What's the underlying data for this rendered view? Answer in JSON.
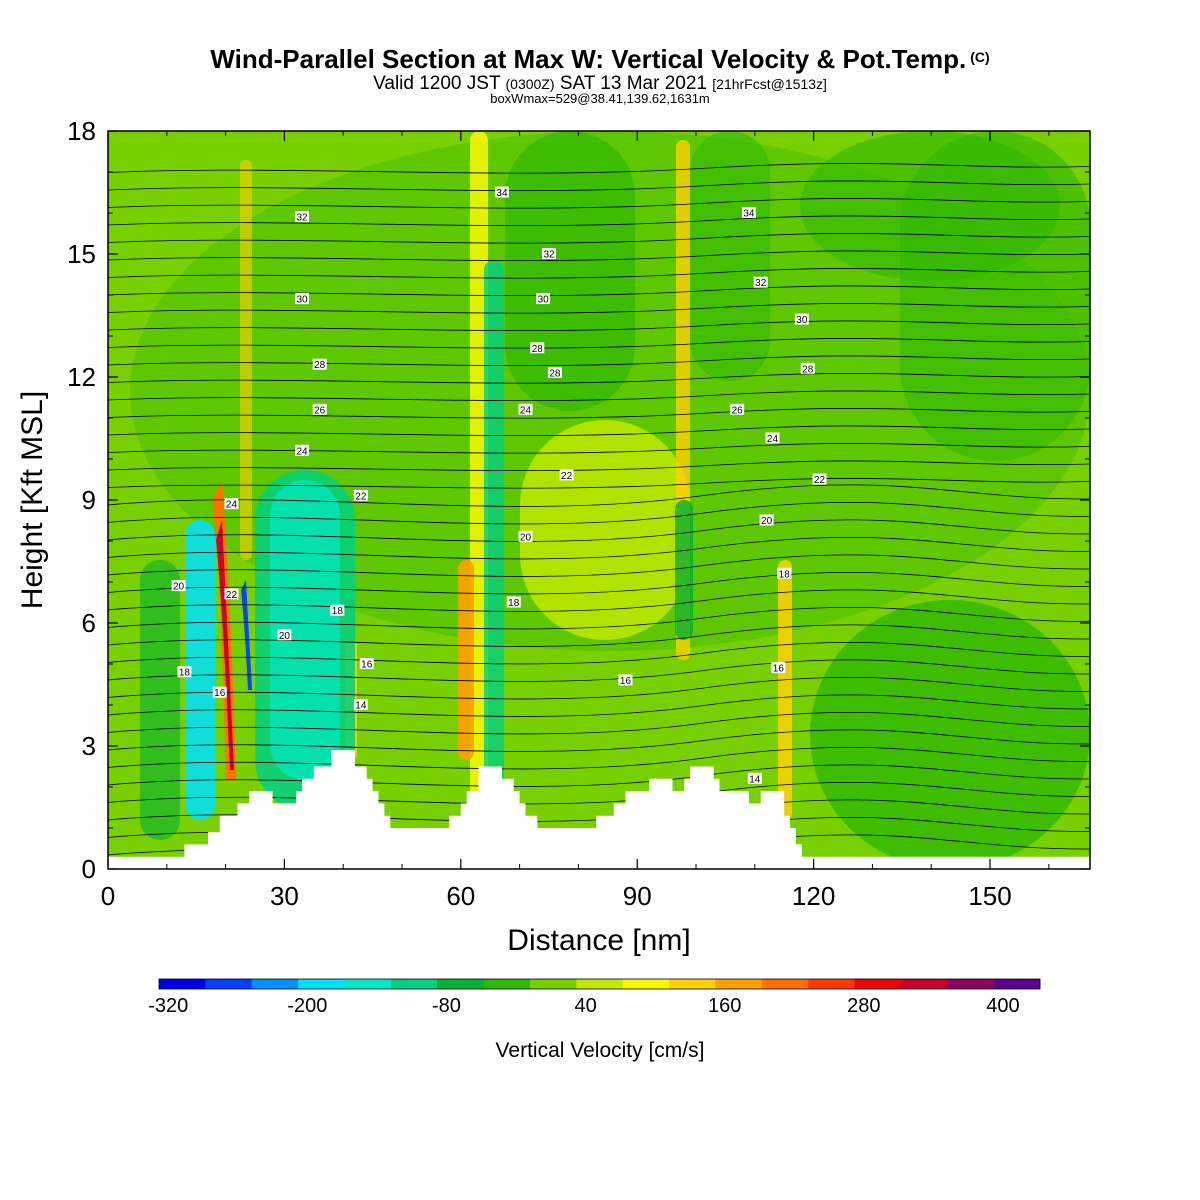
{
  "header": {
    "title": "Wind-Parallel Section at Max W: Vertical Velocity & Pot.Temp.",
    "copyright": "(C)",
    "valid_prefix": "Valid 1200 JST",
    "valid_utc": "(0300Z)",
    "valid_date": "SAT 13 Mar 2021",
    "forecast": "[21hrFcst@1513z]",
    "box_info": "boxWmax=529@38.41,139.62,1631m"
  },
  "chart_data": {
    "type": "heatmap",
    "xlabel": "Distance [nm]",
    "ylabel": "Height [Kft MSL]",
    "xlim": [
      0,
      167
    ],
    "ylim": [
      0,
      18
    ],
    "x_ticks": [
      0,
      30,
      60,
      90,
      120,
      150
    ],
    "y_ticks": [
      0,
      3,
      6,
      9,
      12,
      15,
      18
    ],
    "colorbar": {
      "label": "Vertical Velocity [cm/s]",
      "tick_labels": [
        "-320",
        "-200",
        "-80",
        "40",
        "160",
        "280",
        "400"
      ],
      "colors": [
        "#0000f0",
        "#0040ff",
        "#0090ff",
        "#00e0ff",
        "#00e8c8",
        "#00d080",
        "#00b030",
        "#30b800",
        "#78d000",
        "#c0e800",
        "#f8f800",
        "#ffd000",
        "#ffa000",
        "#ff7000",
        "#ff3800",
        "#f00000",
        "#c80030",
        "#900060",
        "#600090"
      ]
    },
    "terrain_kft": [
      {
        "x": 0,
        "z": 0.3
      },
      {
        "x": 13,
        "z": 0.3
      },
      {
        "x": 13,
        "z": 0.6
      },
      {
        "x": 17,
        "z": 0.6
      },
      {
        "x": 17,
        "z": 0.9
      },
      {
        "x": 19,
        "z": 0.9
      },
      {
        "x": 19,
        "z": 1.3
      },
      {
        "x": 22,
        "z": 1.3
      },
      {
        "x": 22,
        "z": 1.6
      },
      {
        "x": 24,
        "z": 1.6
      },
      {
        "x": 24,
        "z": 1.9
      },
      {
        "x": 28,
        "z": 1.9
      },
      {
        "x": 28,
        "z": 1.6
      },
      {
        "x": 32,
        "z": 1.6
      },
      {
        "x": 32,
        "z": 1.9
      },
      {
        "x": 33,
        "z": 1.9
      },
      {
        "x": 33,
        "z": 2.2
      },
      {
        "x": 35,
        "z": 2.2
      },
      {
        "x": 35,
        "z": 2.5
      },
      {
        "x": 38,
        "z": 2.5
      },
      {
        "x": 38,
        "z": 2.9
      },
      {
        "x": 42,
        "z": 2.9
      },
      {
        "x": 42,
        "z": 2.5
      },
      {
        "x": 44,
        "z": 2.5
      },
      {
        "x": 44,
        "z": 2.2
      },
      {
        "x": 45,
        "z": 2.2
      },
      {
        "x": 45,
        "z": 1.9
      },
      {
        "x": 46,
        "z": 1.9
      },
      {
        "x": 46,
        "z": 1.6
      },
      {
        "x": 47,
        "z": 1.6
      },
      {
        "x": 47,
        "z": 1.3
      },
      {
        "x": 48,
        "z": 1.3
      },
      {
        "x": 48,
        "z": 1.0
      },
      {
        "x": 58,
        "z": 1.0
      },
      {
        "x": 58,
        "z": 1.3
      },
      {
        "x": 60,
        "z": 1.3
      },
      {
        "x": 60,
        "z": 1.6
      },
      {
        "x": 61,
        "z": 1.6
      },
      {
        "x": 61,
        "z": 1.9
      },
      {
        "x": 63,
        "z": 1.9
      },
      {
        "x": 63,
        "z": 2.5
      },
      {
        "x": 67,
        "z": 2.5
      },
      {
        "x": 67,
        "z": 2.2
      },
      {
        "x": 69,
        "z": 2.2
      },
      {
        "x": 69,
        "z": 1.9
      },
      {
        "x": 70,
        "z": 1.9
      },
      {
        "x": 70,
        "z": 1.6
      },
      {
        "x": 71,
        "z": 1.6
      },
      {
        "x": 71,
        "z": 1.3
      },
      {
        "x": 73,
        "z": 1.3
      },
      {
        "x": 73,
        "z": 1.0
      },
      {
        "x": 83,
        "z": 1.0
      },
      {
        "x": 83,
        "z": 1.3
      },
      {
        "x": 86,
        "z": 1.3
      },
      {
        "x": 86,
        "z": 1.6
      },
      {
        "x": 88,
        "z": 1.6
      },
      {
        "x": 88,
        "z": 1.9
      },
      {
        "x": 92,
        "z": 1.9
      },
      {
        "x": 92,
        "z": 2.2
      },
      {
        "x": 96,
        "z": 2.2
      },
      {
        "x": 96,
        "z": 1.9
      },
      {
        "x": 98,
        "z": 1.9
      },
      {
        "x": 98,
        "z": 2.2
      },
      {
        "x": 99,
        "z": 2.2
      },
      {
        "x": 99,
        "z": 2.5
      },
      {
        "x": 103,
        "z": 2.5
      },
      {
        "x": 103,
        "z": 2.2
      },
      {
        "x": 104,
        "z": 2.2
      },
      {
        "x": 104,
        "z": 1.9
      },
      {
        "x": 109,
        "z": 1.9
      },
      {
        "x": 109,
        "z": 1.6
      },
      {
        "x": 111,
        "z": 1.6
      },
      {
        "x": 111,
        "z": 1.9
      },
      {
        "x": 115,
        "z": 1.9
      },
      {
        "x": 115,
        "z": 1.3
      },
      {
        "x": 116,
        "z": 1.3
      },
      {
        "x": 116,
        "z": 1.0
      },
      {
        "x": 117,
        "z": 1.0
      },
      {
        "x": 117,
        "z": 0.6
      },
      {
        "x": 118,
        "z": 0.6
      },
      {
        "x": 118,
        "z": 0.3
      },
      {
        "x": 167,
        "z": 0.3
      }
    ],
    "contour_labels": [
      {
        "text": "34",
        "x": 67,
        "z": 16.5
      },
      {
        "text": "34",
        "x": 109,
        "z": 16.0
      },
      {
        "text": "32",
        "x": 33,
        "z": 15.9
      },
      {
        "text": "32",
        "x": 75,
        "z": 15.0
      },
      {
        "text": "32",
        "x": 111,
        "z": 14.3
      },
      {
        "text": "30",
        "x": 33,
        "z": 13.9
      },
      {
        "text": "30",
        "x": 74,
        "z": 13.9
      },
      {
        "text": "30",
        "x": 118,
        "z": 13.4
      },
      {
        "text": "28",
        "x": 36,
        "z": 12.3
      },
      {
        "text": "28",
        "x": 73,
        "z": 12.7
      },
      {
        "text": "28",
        "x": 76,
        "z": 12.1
      },
      {
        "text": "28",
        "x": 119,
        "z": 12.2
      },
      {
        "text": "26",
        "x": 36,
        "z": 11.2
      },
      {
        "text": "26",
        "x": 107,
        "z": 11.2
      },
      {
        "text": "24",
        "x": 33,
        "z": 10.2
      },
      {
        "text": "24",
        "x": 71,
        "z": 11.2
      },
      {
        "text": "24",
        "x": 113,
        "z": 10.5
      },
      {
        "text": "24",
        "x": 21,
        "z": 8.9
      },
      {
        "text": "22",
        "x": 43,
        "z": 9.1
      },
      {
        "text": "22",
        "x": 78,
        "z": 9.6
      },
      {
        "text": "22",
        "x": 121,
        "z": 9.5
      },
      {
        "text": "20",
        "x": 71,
        "z": 8.1
      },
      {
        "text": "20",
        "x": 112,
        "z": 8.5
      },
      {
        "text": "18",
        "x": 69,
        "z": 6.5
      },
      {
        "text": "18",
        "x": 115,
        "z": 7.2
      },
      {
        "text": "22",
        "x": 21,
        "z": 6.7
      },
      {
        "text": "20",
        "x": 12,
        "z": 6.9
      },
      {
        "text": "20",
        "x": 30,
        "z": 5.7
      },
      {
        "text": "18",
        "x": 39,
        "z": 6.3
      },
      {
        "text": "18",
        "x": 13,
        "z": 4.8
      },
      {
        "text": "16",
        "x": 19,
        "z": 4.3
      },
      {
        "text": "16",
        "x": 44,
        "z": 5.0
      },
      {
        "text": "16",
        "x": 88,
        "z": 4.6
      },
      {
        "text": "16",
        "x": 114,
        "z": 4.9
      },
      {
        "text": "14",
        "x": 43,
        "z": 4.0
      },
      {
        "text": "14",
        "x": 110,
        "z": 2.2
      }
    ]
  }
}
